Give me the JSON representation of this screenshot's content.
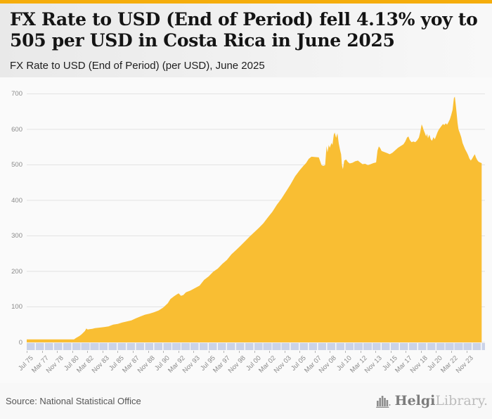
{
  "header": {
    "title": "FX Rate to USD (End of Period) fell 4.13% yoy to 505 per USD in Costa Rica in June 2025",
    "subtitle": "FX Rate to USD (End of Period) (per USD), June 2025"
  },
  "footer": {
    "source": "Source: National Statistical Office",
    "logo_text_dark": "Helgi",
    "logo_text_light": "Library."
  },
  "colors": {
    "accent_bar": "#F5AD0B",
    "area_fill": "#F9BE33",
    "gridline": "#e3e3e3",
    "year_strip": "#cbd3e8",
    "axis_text": "#8a8a8a"
  },
  "chart_data": {
    "type": "area",
    "title": "FX Rate to USD (End of Period) (per USD), June 2025",
    "series_name": "FX Rate to USD (End of Period), per USD",
    "country": "Costa Rica",
    "latest_value": 505,
    "latest_period": "June 2025",
    "yoy_change_pct": -4.13,
    "ylabel": "",
    "xlabel": "",
    "grid": true,
    "legend": false,
    "ylim": [
      0,
      700
    ],
    "y_ticks": [
      700,
      600,
      500,
      400,
      300,
      200,
      100,
      0
    ],
    "xlim_years": [
      1975.5,
      2025.58
    ],
    "x_tick_labels": [
      "Jul 75",
      "Mar 77",
      "Nov 78",
      "Jul 80",
      "Mar 82",
      "Nov 83",
      "Jul 85",
      "Mar 87",
      "Nov 88",
      "Jul 90",
      "Mar 92",
      "Nov 93",
      "Jul 95",
      "Mar 97",
      "Nov 98",
      "Jul 00",
      "Mar 02",
      "Nov 03",
      "Jul 05",
      "Mar 07",
      "Nov 08",
      "Jul 10",
      "Mar 12",
      "Nov 13",
      "Jul 15",
      "Mar 17",
      "Nov 18",
      "Jul 20",
      "Mar 22",
      "Nov 23"
    ],
    "points": [
      [
        1975.5,
        8.6
      ],
      [
        1977,
        8.6
      ],
      [
        1978.5,
        8.6
      ],
      [
        1980,
        8.6
      ],
      [
        1980.7,
        8.6
      ],
      [
        1980.9,
        12
      ],
      [
        1981.1,
        15
      ],
      [
        1981.3,
        18
      ],
      [
        1981.5,
        22
      ],
      [
        1981.7,
        27
      ],
      [
        1981.9,
        32
      ],
      [
        1982.05,
        39
      ],
      [
        1982.2,
        36
      ],
      [
        1982.4,
        37
      ],
      [
        1982.7,
        38
      ],
      [
        1983,
        40
      ],
      [
        1983.5,
        41.5
      ],
      [
        1984,
        43
      ],
      [
        1984.5,
        45
      ],
      [
        1985,
        50
      ],
      [
        1985.5,
        52
      ],
      [
        1986,
        56
      ],
      [
        1986.5,
        59
      ],
      [
        1987,
        62
      ],
      [
        1987.5,
        68
      ],
      [
        1988,
        73
      ],
      [
        1988.5,
        78
      ],
      [
        1989,
        81
      ],
      [
        1989.5,
        85
      ],
      [
        1990,
        90
      ],
      [
        1990.5,
        98
      ],
      [
        1991,
        110
      ],
      [
        1991.3,
        122
      ],
      [
        1991.7,
        130
      ],
      [
        1992,
        135
      ],
      [
        1992.2,
        138
      ],
      [
        1992.45,
        131
      ],
      [
        1992.7,
        133
      ],
      [
        1993,
        141
      ],
      [
        1993.5,
        146
      ],
      [
        1994,
        153
      ],
      [
        1994.5,
        160
      ],
      [
        1995,
        176
      ],
      [
        1995.5,
        186
      ],
      [
        1996,
        199
      ],
      [
        1996.5,
        208
      ],
      [
        1997,
        221
      ],
      [
        1997.5,
        232
      ],
      [
        1998,
        248
      ],
      [
        1998.5,
        260
      ],
      [
        1999,
        272
      ],
      [
        1999.5,
        285
      ],
      [
        2000,
        298
      ],
      [
        2000.5,
        310
      ],
      [
        2001,
        322
      ],
      [
        2001.5,
        335
      ],
      [
        2002,
        352
      ],
      [
        2002.5,
        368
      ],
      [
        2003,
        388
      ],
      [
        2003.5,
        405
      ],
      [
        2004,
        425
      ],
      [
        2004.5,
        445
      ],
      [
        2005,
        468
      ],
      [
        2005.5,
        485
      ],
      [
        2005.9,
        497
      ],
      [
        2006.2,
        505
      ],
      [
        2006.5,
        517
      ],
      [
        2006.8,
        523
      ],
      [
        2007.2,
        522
      ],
      [
        2007.6,
        521
      ],
      [
        2007.9,
        499
      ],
      [
        2008.1,
        497
      ],
      [
        2008.3,
        499
      ],
      [
        2008.45,
        553
      ],
      [
        2008.55,
        535
      ],
      [
        2008.7,
        556
      ],
      [
        2008.8,
        548
      ],
      [
        2009.0,
        562
      ],
      [
        2009.1,
        556
      ],
      [
        2009.25,
        585
      ],
      [
        2009.35,
        591
      ],
      [
        2009.5,
        576
      ],
      [
        2009.65,
        589
      ],
      [
        2009.8,
        560
      ],
      [
        2009.95,
        540
      ],
      [
        2010.05,
        530
      ],
      [
        2010.15,
        498
      ],
      [
        2010.25,
        488
      ],
      [
        2010.4,
        512
      ],
      [
        2010.6,
        515
      ],
      [
        2010.8,
        508
      ],
      [
        2011,
        504
      ],
      [
        2011.3,
        506
      ],
      [
        2011.6,
        510
      ],
      [
        2011.9,
        512
      ],
      [
        2012.1,
        508
      ],
      [
        2012.4,
        502
      ],
      [
        2012.7,
        503
      ],
      [
        2013,
        499
      ],
      [
        2013.3,
        502
      ],
      [
        2013.6,
        505
      ],
      [
        2013.9,
        507
      ],
      [
        2014.05,
        540
      ],
      [
        2014.2,
        552
      ],
      [
        2014.35,
        547
      ],
      [
        2014.5,
        539
      ],
      [
        2014.8,
        536
      ],
      [
        2015.1,
        533
      ],
      [
        2015.4,
        530
      ],
      [
        2015.7,
        534
      ],
      [
        2016,
        541
      ],
      [
        2016.3,
        548
      ],
      [
        2016.6,
        553
      ],
      [
        2016.9,
        558
      ],
      [
        2017.1,
        566
      ],
      [
        2017.3,
        577
      ],
      [
        2017.45,
        580
      ],
      [
        2017.6,
        570
      ],
      [
        2017.8,
        564
      ],
      [
        2018,
        566
      ],
      [
        2018.2,
        564
      ],
      [
        2018.4,
        569
      ],
      [
        2018.6,
        577
      ],
      [
        2018.75,
        592
      ],
      [
        2018.9,
        614
      ],
      [
        2019.0,
        608
      ],
      [
        2019.1,
        600
      ],
      [
        2019.25,
        590
      ],
      [
        2019.4,
        580
      ],
      [
        2019.5,
        588
      ],
      [
        2019.6,
        575
      ],
      [
        2019.75,
        585
      ],
      [
        2019.9,
        572
      ],
      [
        2020.05,
        568
      ],
      [
        2020.2,
        578
      ],
      [
        2020.35,
        572
      ],
      [
        2020.5,
        582
      ],
      [
        2020.65,
        592
      ],
      [
        2020.8,
        600
      ],
      [
        2020.95,
        605
      ],
      [
        2021.1,
        610
      ],
      [
        2021.25,
        615
      ],
      [
        2021.4,
        612
      ],
      [
        2021.55,
        617
      ],
      [
        2021.7,
        613
      ],
      [
        2021.85,
        620
      ],
      [
        2022.0,
        628
      ],
      [
        2022.15,
        640
      ],
      [
        2022.3,
        655
      ],
      [
        2022.45,
        688
      ],
      [
        2022.55,
        692
      ],
      [
        2022.65,
        670
      ],
      [
        2022.75,
        645
      ],
      [
        2022.85,
        618
      ],
      [
        2022.95,
        600
      ],
      [
        2023.1,
        590
      ],
      [
        2023.25,
        578
      ],
      [
        2023.4,
        562
      ],
      [
        2023.55,
        552
      ],
      [
        2023.7,
        543
      ],
      [
        2023.85,
        536
      ],
      [
        2024.0,
        528
      ],
      [
        2024.15,
        518
      ],
      [
        2024.3,
        512
      ],
      [
        2024.45,
        517
      ],
      [
        2024.6,
        524
      ],
      [
        2024.75,
        530
      ],
      [
        2024.85,
        522
      ],
      [
        2025.0,
        514
      ],
      [
        2025.15,
        509
      ],
      [
        2025.3,
        507
      ],
      [
        2025.5,
        505
      ]
    ]
  }
}
